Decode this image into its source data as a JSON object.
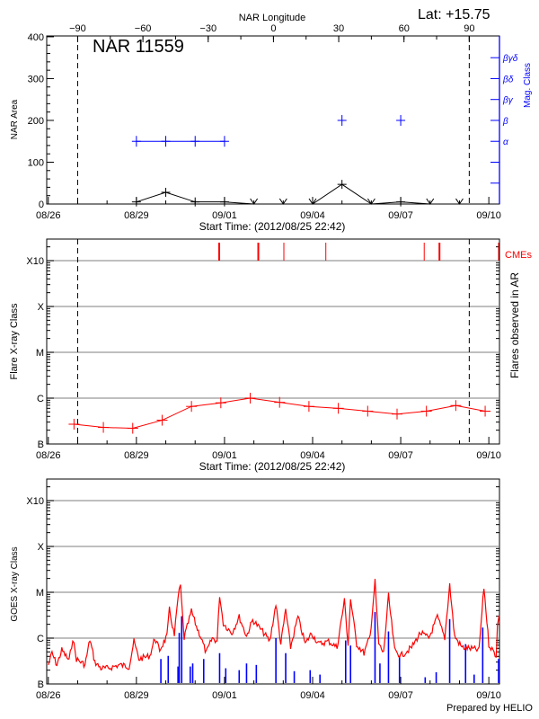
{
  "header": {
    "lat_label": "Lat: +15.75",
    "top_axis_title": "NAR Longitude",
    "credit": "Prepared by HELIO"
  },
  "colors": {
    "axis": "#000000",
    "mag": "#0000ff",
    "flare": "#ff0000",
    "grid": "#999999",
    "goes_long": "#ff0000",
    "goes_short": "#0000ff"
  },
  "chart_data": [
    {
      "type": "line",
      "title": "NAR 11559",
      "xlabel": "Start Time: (2012/08/25 22:42)",
      "ylabel": "NAR Area",
      "y2label": "Mag. Class",
      "top_xlabel": "NAR Longitude",
      "xlim": [
        "2012-08-25T22:42",
        "2012-09-10T08:42"
      ],
      "xticks": [
        "08/26",
        "08/29",
        "09/01",
        "09/04",
        "09/07",
        "09/10"
      ],
      "ylim": [
        0,
        402
      ],
      "yticks": [
        0,
        100,
        200,
        300,
        400
      ],
      "top_xticks": [
        -90,
        -60,
        -30,
        0,
        30,
        60,
        90
      ],
      "limb_lines": [
        "2012-08-27T00:00",
        "2012-09-09T08:00"
      ],
      "area": {
        "x": [
          "2012-08-29T00:00",
          "2012-08-30T00:00",
          "2012-08-31T00:00",
          "2012-09-01T00:00",
          "2012-09-02T00:00",
          "2012-09-03T00:00",
          "2012-09-04T00:00",
          "2012-09-05T00:00",
          "2012-09-06T00:00",
          "2012-09-07T00:00",
          "2012-09-08T00:00",
          "2012-09-09T00:00"
        ],
        "y": [
          5,
          28,
          5,
          5,
          0,
          0,
          0,
          47,
          0,
          5,
          0,
          0
        ]
      },
      "mag_class": {
        "categories": [
          "α",
          "β",
          "βγ",
          "βδ",
          "βγδ"
        ],
        "x": [
          "2012-08-29T00:00",
          "2012-08-30T00:00",
          "2012-08-31T00:00",
          "2012-09-01T00:00",
          "2012-09-05T00:00",
          "2012-09-07T00:00"
        ],
        "y": [
          "α",
          "α",
          "α",
          "α",
          "β",
          "β"
        ]
      }
    },
    {
      "type": "line",
      "xlabel": "Start Time: (2012/08/25 22:42)",
      "ylabel": "Flare X-ray Class",
      "y2label": "Flares observed in AR",
      "cme_label": "CMEs",
      "xlim": [
        "2012-08-25T22:42",
        "2012-09-10T08:42"
      ],
      "xticks": [
        "08/26",
        "08/29",
        "09/01",
        "09/04",
        "09/07",
        "09/10"
      ],
      "yscale": "log",
      "yticks": [
        "B",
        "C",
        "M",
        "X",
        "X10"
      ],
      "grid": true,
      "limb_lines": [
        "2012-08-27T00:00",
        "2012-09-09T08:00"
      ],
      "flares": {
        "x": [
          "2012-08-26T21:00",
          "2012-08-27T21:00",
          "2012-08-28T21:00",
          "2012-08-29T21:00",
          "2012-08-30T21:00",
          "2012-08-31T21:00",
          "2012-09-01T21:00",
          "2012-09-02T21:00",
          "2012-09-03T21:00",
          "2012-09-04T21:00",
          "2012-09-05T21:00",
          "2012-09-06T21:00",
          "2012-09-07T21:00",
          "2012-09-08T21:00",
          "2012-09-09T21:00"
        ],
        "y": [
          "B2.7",
          "B2.3",
          "B2.2",
          "B3.3",
          "B6.6",
          "B7.9",
          "C1.0",
          "B8.1",
          "B6.6",
          "B6.0",
          "B5.2",
          "B4.5",
          "B5.2",
          "B6.9",
          "B5.2"
        ]
      },
      "cmes": {
        "x": [
          "2012-08-31T19:40",
          "2012-09-02T03:36",
          "2012-09-03T00:30",
          "2012-09-04T10:48",
          "2012-09-07T19:12",
          "2012-09-08T07:40",
          "2012-09-10T08:00"
        ],
        "major": [
          true,
          true,
          false,
          false,
          false,
          true,
          false
        ]
      }
    },
    {
      "type": "line",
      "ylabel": "GOES X-ray Class",
      "xlim": [
        "2012-08-25T22:42",
        "2012-09-10T08:42"
      ],
      "xticks": [
        "08/26",
        "08/29",
        "09/01",
        "09/04",
        "09/07",
        "09/10"
      ],
      "yscale": "log",
      "yticks": [
        "B",
        "C",
        "M",
        "X",
        "X10"
      ],
      "grid": true,
      "long_channel": {
        "x": [
          "2012-08-26T00:00",
          "2012-08-26T03:00",
          "2012-08-26T07:00",
          "2012-08-26T11:00",
          "2012-08-26T17:00",
          "2012-08-26T20:00",
          "2012-08-26T23:00",
          "2012-08-27T06:00",
          "2012-08-27T10:00",
          "2012-08-27T14:00",
          "2012-08-27T19:00",
          "2012-08-28T01:00",
          "2012-08-28T10:00",
          "2012-08-28T18:00",
          "2012-08-28T22:00",
          "2012-08-29T02:00",
          "2012-08-29T11:00",
          "2012-08-29T15:00",
          "2012-08-29T19:00",
          "2012-08-30T01:00",
          "2012-08-30T03:00",
          "2012-08-30T07:00",
          "2012-08-30T10:00",
          "2012-08-30T12:00",
          "2012-08-30T15:00",
          "2012-08-30T21:00",
          "2012-08-31T01:00",
          "2012-08-31T05:00",
          "2012-08-31T09:00",
          "2012-08-31T14:00",
          "2012-08-31T18:00",
          "2012-08-31T20:00",
          "2012-08-31T23:00",
          "2012-09-01T06:00",
          "2012-09-01T12:00",
          "2012-09-01T18:00",
          "2012-09-01T23:00",
          "2012-09-02T08:00",
          "2012-09-02T13:00",
          "2012-09-02T18:00",
          "2012-09-02T22:00",
          "2012-09-03T02:00",
          "2012-09-03T06:00",
          "2012-09-03T12:00",
          "2012-09-03T18:00",
          "2012-09-03T23:00",
          "2012-09-04T05:00",
          "2012-09-04T13:00",
          "2012-09-04T20:00",
          "2012-09-05T02:00",
          "2012-09-05T05:00",
          "2012-09-05T07:00",
          "2012-09-05T12:00",
          "2012-09-05T18:00",
          "2012-09-05T23:00",
          "2012-09-06T03:00",
          "2012-09-06T06:00",
          "2012-09-06T10:00",
          "2012-09-06T14:00",
          "2012-09-06T19:00",
          "2012-09-07T00:00",
          "2012-09-07T09:00",
          "2012-09-07T16:00",
          "2012-09-07T23:00",
          "2012-09-08T06:00",
          "2012-09-08T12:00",
          "2012-09-08T16:00",
          "2012-09-08T20:00",
          "2012-09-09T02:00",
          "2012-09-09T09:00",
          "2012-09-09T16:00",
          "2012-09-09T20:00",
          "2012-09-10T00:00",
          "2012-09-10T06:00",
          "2012-09-10T07:00",
          "2012-09-10T08:30"
        ],
        "y": [
          "B2.6",
          "B4.7",
          "B2.6",
          "B5.5",
          "B3.2",
          "C1.0",
          "B3.5",
          "B2.6",
          "B9.3",
          "B3.0",
          "B2.2",
          "B2.2",
          "B2.6",
          "B2.4",
          "B8.5",
          "B3.5",
          "B4.1",
          "C1.0",
          "B5.5",
          "C1.1",
          "C4.2",
          "C1.1",
          "C7.6",
          "M1.4",
          "C1.0",
          "C3.9",
          "C1.8",
          "C1.0",
          "B4.7",
          "C1.0",
          "B8.5",
          "C8.9",
          "C2.1",
          "C1.3",
          "C2.9",
          "C1.1",
          "C2.5",
          "C1.3",
          "B8.5",
          "C5.6",
          "B7.4",
          "C4.2",
          "B6.3",
          "C2.9",
          "B7.4",
          "C1.3",
          "B7.4",
          "B8.5",
          "B6.3",
          "C6.6",
          "B7.4",
          "C7.1",
          "B7.4",
          "B4.7",
          "C1.1",
          "M1.7",
          "B7.4",
          "B4.7",
          "C8.3",
          "B5.5",
          "B4.1",
          "B6.3",
          "C1.3",
          "C1.0",
          "C2.9",
          "C1.0",
          "M1.5",
          "C1.1",
          "B6.3",
          "B5.9",
          "B5.5",
          "M1.3",
          "B7.4",
          "B4.1",
          "C1.8",
          "C3.1"
        ]
      },
      "short_channel": {
        "x": [
          "2012-08-29T20:00",
          "2012-08-30T02:00",
          "2012-08-30T10:00",
          "2012-08-30T11:00",
          "2012-08-30T13:00",
          "2012-08-30T20:00",
          "2012-08-30T22:00",
          "2012-08-31T07:00",
          "2012-08-31T20:00",
          "2012-09-01T01:00",
          "2012-09-01T12:00",
          "2012-09-01T18:00",
          "2012-09-02T02:00",
          "2012-09-02T18:00",
          "2012-09-03T02:00",
          "2012-09-03T09:00",
          "2012-09-03T22:00",
          "2012-09-04T06:00",
          "2012-09-05T03:00",
          "2012-09-05T07:00",
          "2012-09-06T03:00",
          "2012-09-06T07:00",
          "2012-09-06T14:00",
          "2012-09-06T23:00",
          "2012-09-07T20:00",
          "2012-09-08T05:00",
          "2012-09-08T16:00",
          "2012-09-09T05:00",
          "2012-09-09T12:00",
          "2012-09-09T19:00",
          "2012-09-10T08:00"
        ],
        "y": [
          "B3.5",
          "B4.1",
          "B2.4",
          "C1.3",
          "C3.0",
          "B2.4",
          "B2.8",
          "B3.5",
          "B4.7",
          "B2.2",
          "B2.0",
          "B2.8",
          "B2.6",
          "C1.0",
          "B4.7",
          "B1.9",
          "B2.0",
          "B1.6",
          "B8.9",
          "B6.9",
          "C3.7",
          "B2.8",
          "C1.4",
          "B4.1",
          "B1.4",
          "B1.8",
          "C2.6",
          "B7.4",
          "B1.6",
          "C1.7",
          "B3.5"
        ]
      }
    }
  ]
}
